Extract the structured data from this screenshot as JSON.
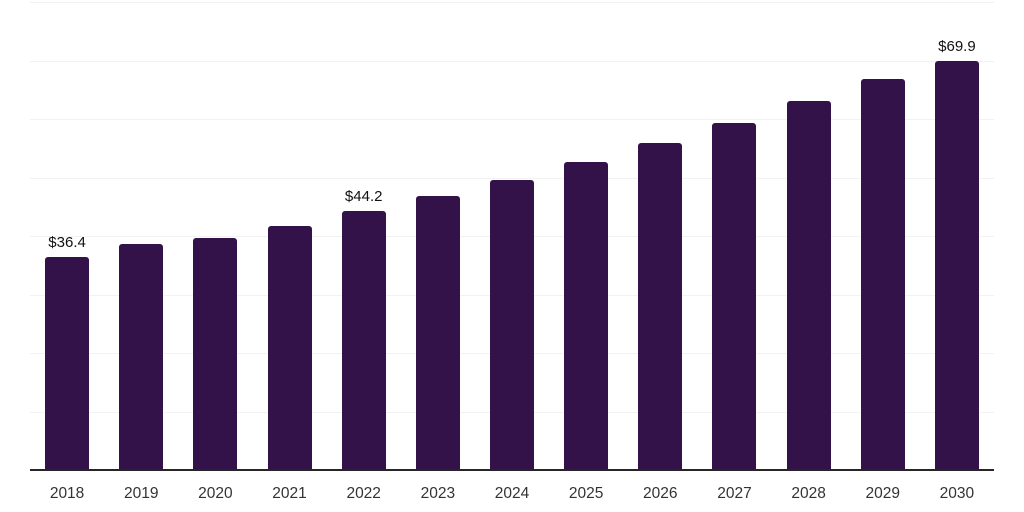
{
  "chart_data": {
    "type": "bar",
    "title": "",
    "categories": [
      "2018",
      "2019",
      "2020",
      "2021",
      "2022",
      "2023",
      "2024",
      "2025",
      "2026",
      "2027",
      "2028",
      "2029",
      "2030"
    ],
    "values": [
      36.4,
      38.7,
      39.6,
      41.7,
      44.2,
      46.9,
      49.6,
      52.6,
      55.9,
      59.4,
      63.0,
      66.8,
      69.9
    ],
    "labeled_points": [
      {
        "index": 0,
        "label": "$36.4"
      },
      {
        "index": 4,
        "label": "$44.2"
      },
      {
        "index": 12,
        "label": "$69.9"
      }
    ],
    "value_prefix": "$",
    "xlabel": "",
    "ylabel": "",
    "ylim": [
      0,
      80
    ],
    "grid_step": 10,
    "grid": true,
    "legend": false,
    "colors": {
      "bar": "#33124a",
      "axis": "#262626",
      "grid": "#f2f2f2",
      "value_label": "#111111",
      "tick_label": "#333333",
      "background": "#ffffff"
    }
  }
}
